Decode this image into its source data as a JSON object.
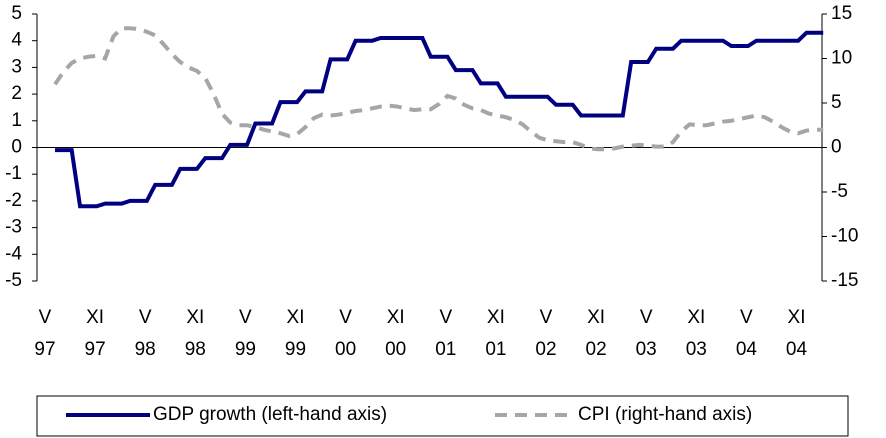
{
  "chart_data": {
    "type": "line",
    "categories": [
      "V\n97",
      null,
      null,
      null,
      null,
      null,
      "XI\n97",
      null,
      null,
      null,
      null,
      null,
      "V\n98",
      null,
      null,
      null,
      null,
      null,
      "XI\n98",
      null,
      null,
      null,
      null,
      null,
      "V\n99",
      null,
      null,
      null,
      null,
      null,
      "XI\n99",
      null,
      null,
      null,
      null,
      null,
      "V\n00",
      null,
      null,
      null,
      null,
      null,
      "XI\n00",
      null,
      null,
      null,
      null,
      null,
      "V\n01",
      null,
      null,
      null,
      null,
      null,
      "XI\n01",
      null,
      null,
      null,
      null,
      null,
      "V\n02",
      null,
      null,
      null,
      null,
      null,
      "XI\n02",
      null,
      null,
      null,
      null,
      null,
      "V\n03",
      null,
      null,
      null,
      null,
      null,
      "XI\n03",
      null,
      null,
      null,
      null,
      null,
      "V\n04",
      null,
      null,
      null,
      null,
      null,
      "XI\n04",
      null,
      null
    ],
    "series": [
      {
        "name": "GDP growth (left-hand axis)",
        "color": "#000080",
        "axis": "y",
        "values": [
          -0.1,
          -0.1,
          -0.1,
          -2.2,
          -2.2,
          -2.2,
          -2.1,
          -2.1,
          -2.1,
          -2.0,
          -2.0,
          -2.0,
          -1.4,
          -1.4,
          -1.4,
          -0.8,
          -0.8,
          -0.8,
          -0.4,
          -0.4,
          -0.4,
          0.1,
          0.1,
          0.1,
          0.9,
          0.9,
          0.9,
          1.7,
          1.7,
          1.7,
          2.1,
          2.1,
          2.1,
          3.3,
          3.3,
          3.3,
          4.0,
          4.0,
          4.0,
          4.1,
          4.1,
          4.1,
          4.1,
          4.1,
          4.1,
          3.4,
          3.4,
          3.4,
          2.9,
          2.9,
          2.9,
          2.4,
          2.4,
          2.4,
          1.9,
          1.9,
          1.9,
          1.9,
          1.9,
          1.9,
          1.6,
          1.6,
          1.6,
          1.2,
          1.2,
          1.2,
          1.2,
          1.2,
          1.2,
          3.2,
          3.2,
          3.2,
          3.7,
          3.7,
          3.7,
          4.0,
          4.0,
          4.0,
          4.0,
          4.0,
          4.0,
          3.8,
          3.8,
          3.8,
          4.0,
          4.0,
          4.0,
          4.0,
          4.0,
          4.0,
          4.3,
          4.3,
          4.3
        ]
      },
      {
        "name": "CPI (right-hand axis)",
        "color": "#a6a6a6",
        "axis": "y2",
        "values": [
          7.1,
          8.5,
          9.5,
          10.0,
          10.2,
          10.3,
          10.0,
          12.5,
          13.4,
          13.4,
          13.3,
          13.0,
          12.6,
          11.6,
          10.5,
          9.6,
          9.0,
          8.6,
          7.8,
          6.0,
          3.8,
          2.8,
          2.5,
          2.5,
          2.3,
          2.0,
          1.8,
          1.6,
          1.3,
          1.5,
          2.3,
          3.3,
          3.7,
          3.6,
          3.7,
          3.9,
          4.1,
          4.2,
          4.4,
          4.6,
          4.7,
          4.6,
          4.4,
          4.2,
          4.3,
          4.3,
          4.9,
          5.8,
          5.5,
          4.8,
          4.4,
          4.2,
          3.8,
          3.6,
          3.4,
          3.1,
          2.6,
          1.8,
          1.1,
          0.8,
          0.7,
          0.6,
          0.6,
          0.3,
          -0.1,
          -0.2,
          -0.2,
          -0.1,
          0.1,
          0.2,
          0.3,
          0.2,
          0.1,
          0.1,
          0.6,
          1.8,
          2.6,
          2.5,
          2.5,
          2.7,
          2.9,
          3.0,
          3.2,
          3.4,
          3.6,
          3.4,
          2.9,
          2.3,
          1.8,
          1.6,
          1.9,
          2.0,
          2.0
        ]
      }
    ],
    "ylim": [
      -5,
      5
    ],
    "yticks": [
      -5,
      -4,
      -3,
      -2,
      -1,
      0,
      1,
      2,
      3,
      4,
      5
    ],
    "y2lim": [
      -15,
      15
    ],
    "y2ticks": [
      -15,
      -10,
      -5,
      0,
      5,
      10,
      15
    ],
    "grid": false,
    "legend": "bottom"
  }
}
